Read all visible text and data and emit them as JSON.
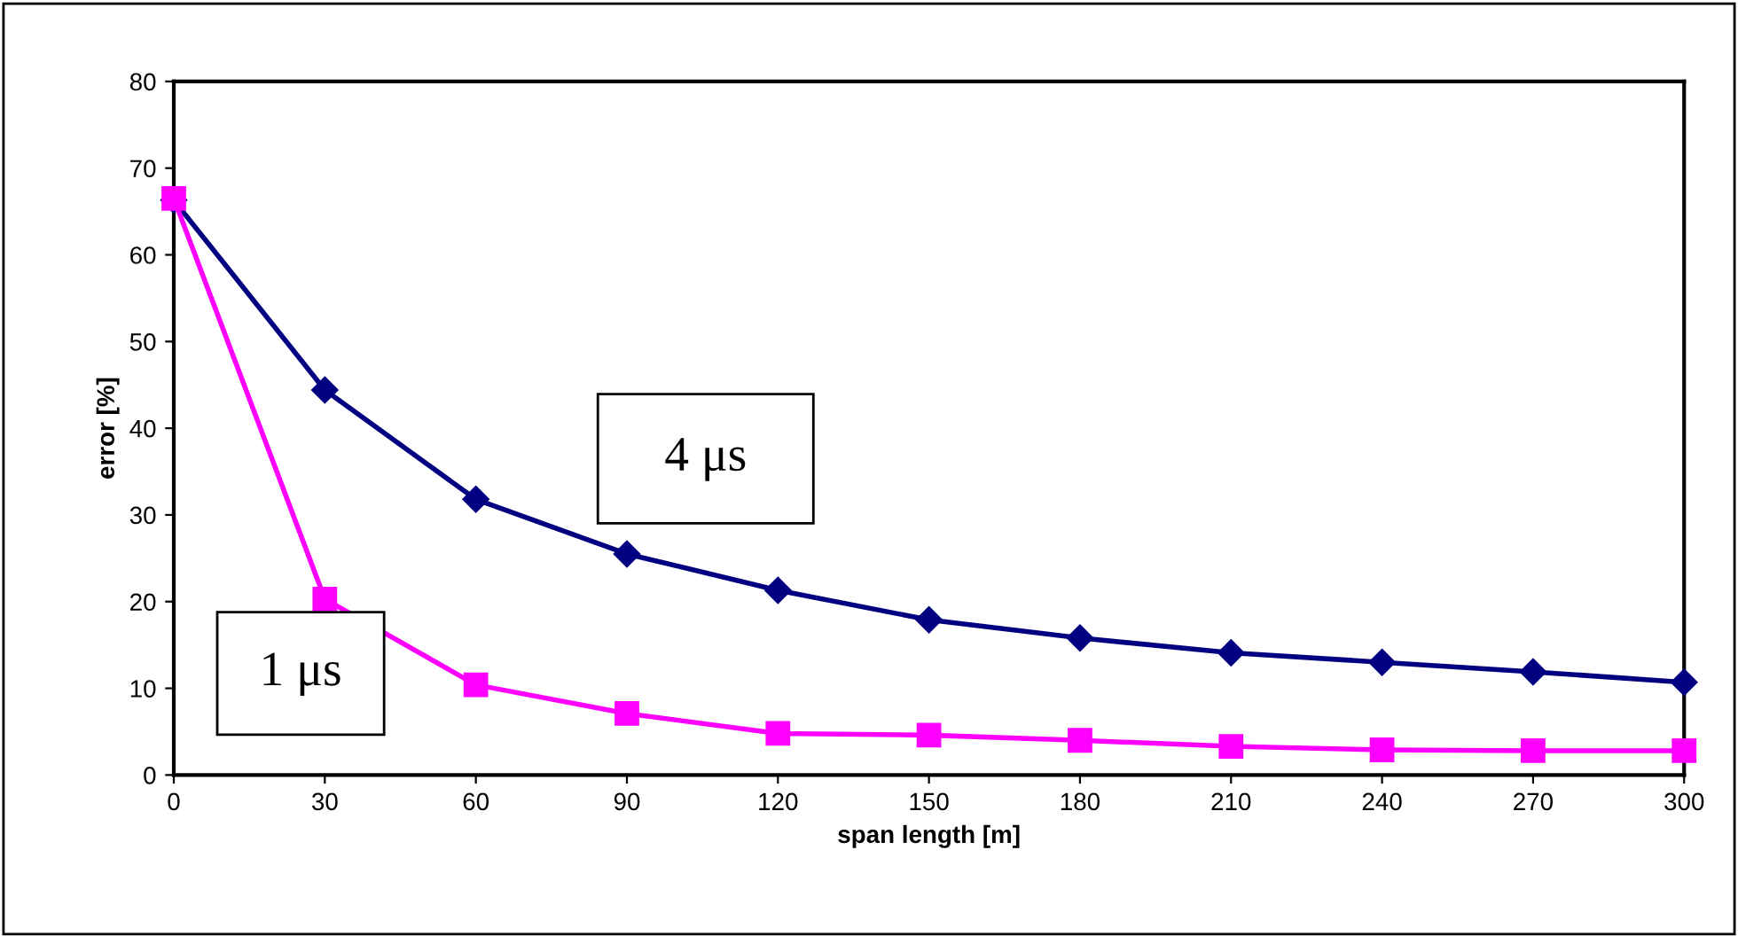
{
  "chart_data": {
    "type": "line",
    "xlabel": "span length [m]",
    "ylabel": "error [%]",
    "x": [
      0,
      30,
      60,
      90,
      120,
      150,
      180,
      210,
      240,
      270,
      300
    ],
    "series": [
      {
        "name": "4 μs",
        "color": "#000080",
        "marker": "diamond",
        "values": [
          66.3,
          44.4,
          31.8,
          25.5,
          21.3,
          17.9,
          15.8,
          14.1,
          13.0,
          11.9,
          10.7
        ]
      },
      {
        "name": "1 μs",
        "color": "#ff00ff",
        "marker": "square",
        "values": [
          66.5,
          20.3,
          10.4,
          7.1,
          4.8,
          4.6,
          4.0,
          3.3,
          2.9,
          2.8,
          2.8
        ]
      }
    ],
    "xlim": [
      0,
      300
    ],
    "xticks": [
      0,
      30,
      60,
      90,
      120,
      150,
      180,
      210,
      240,
      270,
      300
    ],
    "ylim": [
      0,
      80
    ],
    "yticks": [
      0,
      10,
      20,
      30,
      40,
      50,
      60,
      70,
      80
    ],
    "grid": false,
    "legend": false,
    "line_style": "solid"
  }
}
